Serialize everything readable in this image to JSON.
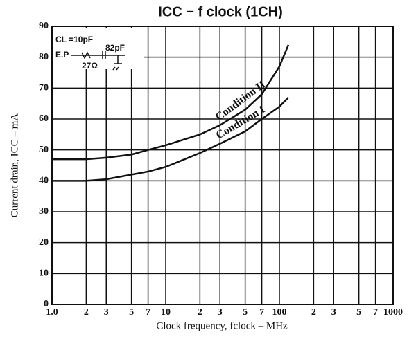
{
  "chart_data": {
    "type": "line",
    "title": "ICC − f clock (1CH)",
    "x_label": "Clock frequency, fclock – MHz",
    "y_label": "Current drain, ICC – mA",
    "xscale": "log",
    "xlim": [
      1,
      1000
    ],
    "ylim": [
      0,
      90
    ],
    "xticks": [
      {
        "value": 1,
        "label": "1.0"
      },
      2,
      3,
      5,
      7,
      10,
      {
        "value": 20,
        "label": "2"
      },
      {
        "value": 30,
        "label": "3"
      },
      {
        "value": 50,
        "label": "5"
      },
      {
        "value": 70,
        "label": "7"
      },
      100,
      {
        "value": 200,
        "label": "2"
      },
      {
        "value": 300,
        "label": "3"
      },
      {
        "value": 500,
        "label": "5"
      },
      {
        "value": 700,
        "label": "7"
      },
      1000
    ],
    "yticks": [
      0,
      10,
      20,
      30,
      40,
      50,
      60,
      70,
      80,
      90
    ],
    "grid": true,
    "x": [
      1,
      2,
      3,
      5,
      7,
      10,
      20,
      30,
      50,
      70,
      100,
      120
    ],
    "series": [
      {
        "name": "Condition II",
        "color": "#111111",
        "values": [
          47,
          47,
          47.5,
          48.5,
          50,
          51.5,
          55,
          58,
          63,
          68,
          77,
          84
        ]
      },
      {
        "name": "Condition I",
        "color": "#111111",
        "values": [
          40,
          40,
          40.5,
          42,
          43,
          44.5,
          49,
          52,
          56,
          60,
          64,
          67
        ]
      }
    ],
    "inset": {
      "load": "CL =10pF",
      "cap": "82pF",
      "source": "E.P",
      "resistor": "27Ω"
    }
  }
}
